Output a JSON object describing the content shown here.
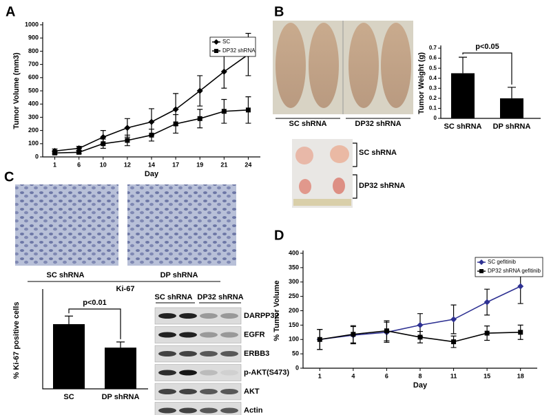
{
  "panels": [
    "A",
    "B",
    "C",
    "D"
  ],
  "image_labels": {
    "mice": [
      "SC shRNA",
      "DP32 shRNA"
    ],
    "tumors": [
      "SC shRNA",
      "DP32 shRNA"
    ],
    "ihc": [
      "SC shRNA",
      "DP shRNA"
    ],
    "ihc_stain": "Ki-67",
    "blot_lanes": [
      "SC shRNA",
      "DP32 shRNA"
    ],
    "blot_rows": [
      "DARPP32",
      "EGFR",
      "ERBB3",
      "p-AKT(S473)",
      "AKT",
      "Actin"
    ]
  },
  "chart_data": [
    {
      "type": "line",
      "x_label": "Day",
      "y_label": "Tumor Volume (mm3)",
      "categories": [
        "1",
        "6",
        "10",
        "12",
        "14",
        "17",
        "19",
        "21",
        "24"
      ],
      "ylim": [
        0,
        1000
      ],
      "yticks": [
        0,
        100,
        200,
        300,
        400,
        500,
        600,
        700,
        800,
        900,
        1000
      ],
      "series": [
        {
          "name": "SC",
          "color": "#000000",
          "marker": "diamond",
          "values": [
            45,
            65,
            150,
            220,
            265,
            360,
            500,
            645,
            775
          ],
          "errors": [
            15,
            15,
            50,
            70,
            100,
            120,
            115,
            125,
            160
          ]
        },
        {
          "name": "DP32 shRNA",
          "color": "#000000",
          "marker": "square",
          "values": [
            30,
            35,
            100,
            125,
            165,
            250,
            290,
            345,
            355
          ],
          "errors": [
            10,
            10,
            35,
            40,
            45,
            70,
            70,
            90,
            100
          ]
        }
      ]
    },
    {
      "type": "bar",
      "y_label": "Tumor Weight (g)",
      "annotation": "p<0.05",
      "categories": [
        "SC shRNA",
        "DP shRNA"
      ],
      "values": [
        0.45,
        0.2
      ],
      "errors": [
        0.16,
        0.11
      ],
      "color": "#000000",
      "ylim": [
        0,
        0.7
      ],
      "yticks": [
        0,
        0.1,
        0.2,
        0.3,
        0.4,
        0.5,
        0.6,
        0.7
      ]
    },
    {
      "type": "bar",
      "y_label": "% Ki-67 positive cells",
      "annotation": "p<0.01",
      "categories": [
        "SC",
        "DP shRNA"
      ],
      "values": [
        40,
        25.5
      ],
      "errors": [
        5,
        3.5
      ],
      "color": "#000000",
      "ylim": [
        0,
        60
      ]
    },
    {
      "type": "line",
      "x_label": "Day",
      "y_label": "% Tumor Volume",
      "categories": [
        "1",
        "4",
        "6",
        "8",
        "11",
        "15",
        "18"
      ],
      "ylim": [
        0,
        400
      ],
      "yticks": [
        0,
        50,
        100,
        150,
        200,
        250,
        300,
        350,
        400
      ],
      "series": [
        {
          "name": "SC gefitinib",
          "color": "#2e3192",
          "marker": "diamond",
          "values": [
            100,
            115,
            125,
            150,
            170,
            230,
            285
          ],
          "errors": [
            35,
            30,
            35,
            40,
            50,
            45,
            60
          ]
        },
        {
          "name": "DP32 shRNA gefitinib",
          "color": "#000000",
          "marker": "square",
          "values": [
            100,
            118,
            130,
            108,
            92,
            122,
            125
          ],
          "errors": [
            35,
            30,
            35,
            20,
            20,
            25,
            25
          ]
        }
      ]
    }
  ]
}
